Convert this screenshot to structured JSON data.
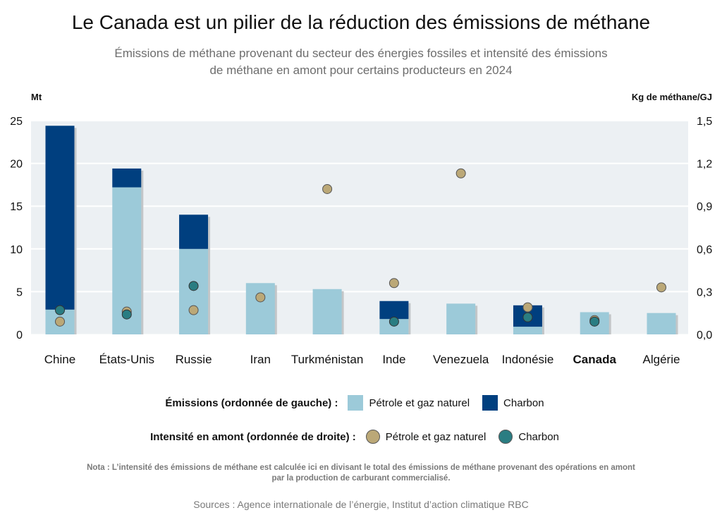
{
  "title": "Le Canada est un pilier de la réduction des émissions de méthane",
  "subtitle_line1": "Émissions de méthane provenant du secteur des énergies fossiles et intensité des émissions",
  "subtitle_line2": "de méthane en amont pour certains producteurs en 2024",
  "left_unit": "Mt",
  "right_unit": "Kg de méthane/GJ",
  "legend": {
    "emissions_label": "Émissions (ordonnée de gauche) :",
    "intensity_label": "Intensité en amont (ordonnée de droite) :",
    "oil_gas": "Pétrole et gaz naturel",
    "coal": "Charbon"
  },
  "note_line1": "Nota : L’intensité des émissions de méthane est calculée ici en divisant le total des émissions de méthane provenant des opérations en amont",
  "note_line2": "par la production de carburant commercialisé.",
  "sources": "Sources : Agence internationale de l’énergie, Institut d’action climatique RBC",
  "colors": {
    "oil_gas_bar": "#9ccad9",
    "coal_bar": "#003f7f",
    "oil_gas_dot": "#bba877",
    "coal_dot": "#2a7d82",
    "plot_bg": "#ecf0f3",
    "shadow": "#c3c6c8"
  },
  "chart_data": {
    "type": "bar",
    "categories": [
      "Chine",
      "États-Unis",
      "Russie",
      "Iran",
      "Turkménistan",
      "Inde",
      "Venezuela",
      "Indonésie",
      "Canada",
      "Algérie"
    ],
    "highlight_category": "Canada",
    "series": [
      {
        "name": "Pétrole et gaz naturel",
        "axis": "left",
        "kind": "stacked-bar",
        "values": [
          2.9,
          17.2,
          10.0,
          6.0,
          5.3,
          1.8,
          3.6,
          0.9,
          2.6,
          2.5
        ]
      },
      {
        "name": "Charbon",
        "axis": "left",
        "kind": "stacked-bar",
        "values": [
          21.5,
          2.2,
          4.0,
          0,
          0,
          2.1,
          0,
          2.5,
          0,
          0
        ]
      },
      {
        "name": "Pétrole et gaz naturel",
        "axis": "right",
        "kind": "dot",
        "values": [
          0.09,
          0.16,
          0.17,
          0.26,
          1.02,
          0.36,
          1.13,
          0.19,
          0.1,
          0.33
        ]
      },
      {
        "name": "Charbon",
        "axis": "right",
        "kind": "dot",
        "values": [
          0.17,
          0.14,
          0.34,
          null,
          null,
          0.09,
          null,
          0.12,
          0.09,
          null
        ]
      }
    ],
    "ylim_left": [
      0,
      25
    ],
    "yticks_left": [
      "0",
      "5",
      "10",
      "15",
      "20",
      "25"
    ],
    "ylim_right": [
      0,
      1.5
    ],
    "yticks_right": [
      "0,0",
      "0,3",
      "0,6",
      "0,9",
      "1,2",
      "1,5"
    ],
    "grid": true,
    "legend_position": "bottom"
  }
}
